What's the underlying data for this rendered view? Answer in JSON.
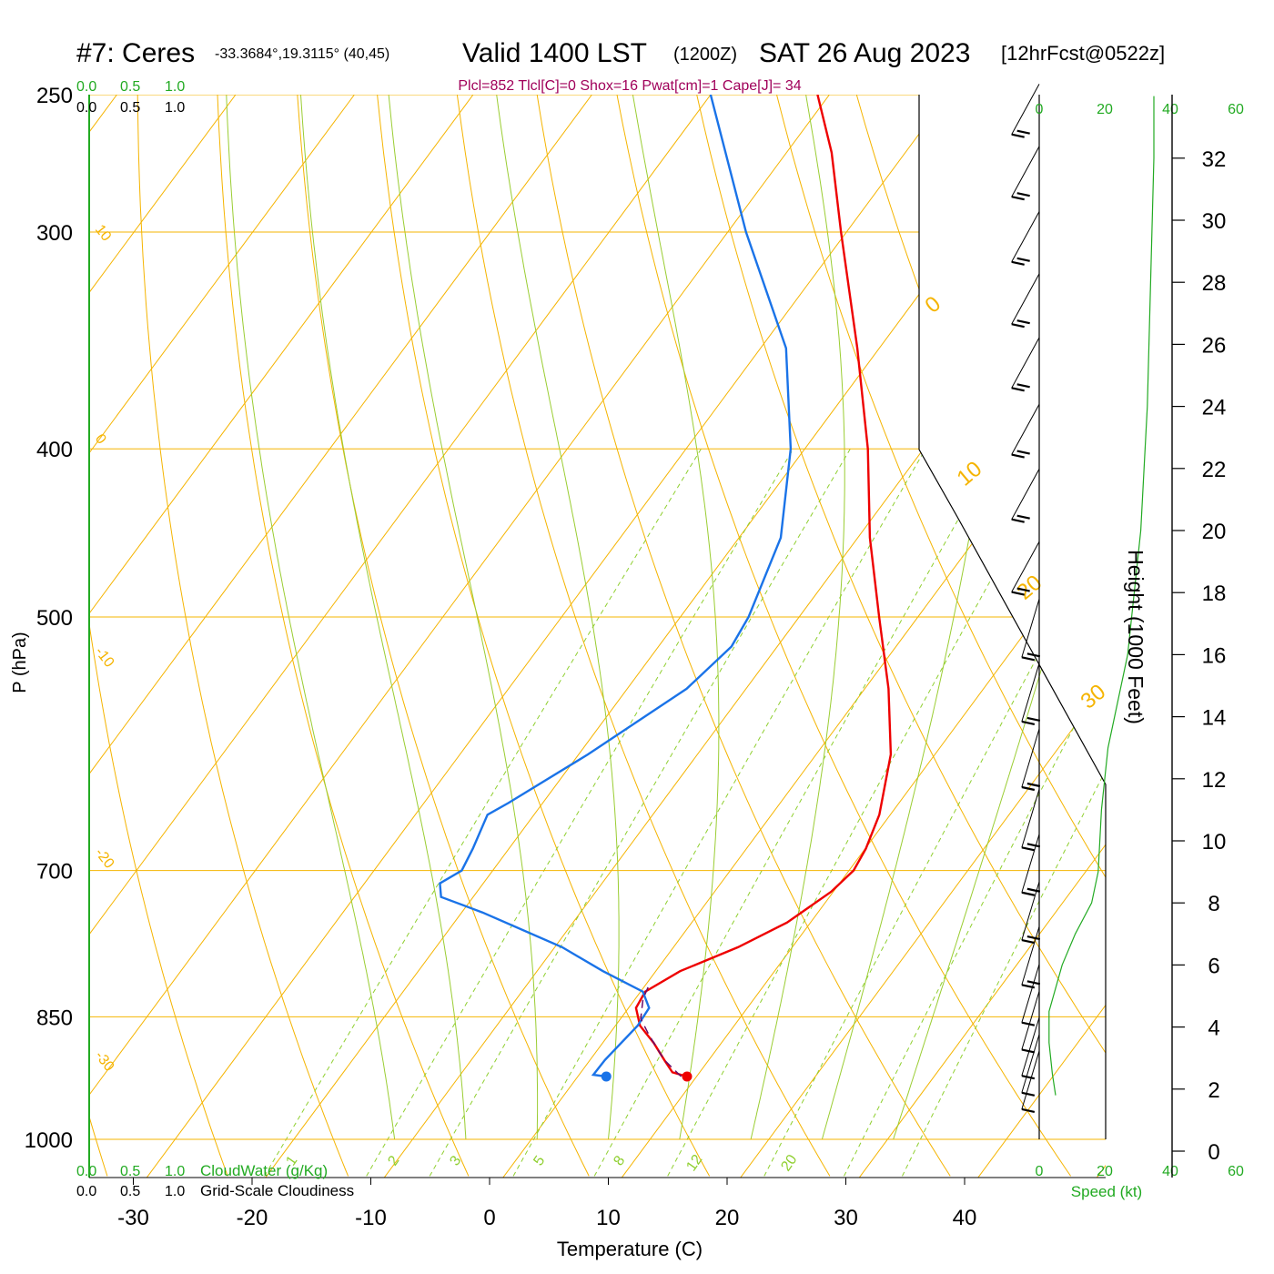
{
  "header": {
    "station": "#7: Ceres",
    "coords": "-33.3684°,19.3115° (40,45)",
    "valid": "Valid 1400 LST",
    "utc": "(1200Z)",
    "date": "SAT 26 Aug 2023",
    "forecast": "[12hrFcst@0522z]",
    "params": "Plcl=852 Tlcl[C]=0 Shox=16 Pwat[cm]=1 Cape[J]= 34"
  },
  "axes": {
    "pressure_label": "P (hPa)",
    "temperature_label": "Temperature (C)",
    "height_label": "Height (1000 Feet)",
    "speed_label": "Speed (kt)",
    "cloudwater_label": "CloudWater (g/Kg)",
    "cloudiness_label": "Grid-Scale Cloudiness",
    "pressure_ticks": [
      250,
      300,
      400,
      500,
      700,
      850,
      1000
    ],
    "temperature_ticks": [
      -30,
      -20,
      -10,
      0,
      10,
      20,
      30,
      40
    ],
    "height_ticks": [
      0,
      2,
      4,
      6,
      8,
      10,
      12,
      14,
      16,
      18,
      20,
      22,
      24,
      26,
      28,
      30,
      32
    ],
    "speed_ticks": [
      0,
      20,
      40,
      60
    ],
    "cloud_ticks": [
      "0.0",
      "0.5",
      "1.0"
    ],
    "ylim_hpa": [
      1000,
      250
    ],
    "xlim_c": [
      -34,
      36
    ]
  },
  "isotherm_labels": [
    "10",
    "0",
    "-10",
    "-20",
    "-30"
  ],
  "dry_adiabat_labels": [
    "0",
    "10",
    "20",
    "30"
  ],
  "mixing_ratio_labels": [
    "1",
    "2",
    "3",
    "5",
    "8",
    "12",
    "20"
  ],
  "colors": {
    "temperature": "#ee0000",
    "dewpoint": "#1a73e8",
    "isotherm": "#f5b400",
    "moist_adiabat": "#9acd32",
    "mixing_ratio": "#8fcf2f",
    "params": "#a0005a",
    "green_text": "#22aa22"
  },
  "chart_data": {
    "type": "line",
    "title": "#7: Ceres Valid 1400 LST (1200Z) SAT 26 Aug 2023",
    "xlabel": "Temperature (C)",
    "ylabel": "P (hPa)",
    "series": [
      {
        "kind": "temperature",
        "points": [
          {
            "p": 920,
            "t": 12.5
          },
          {
            "p": 915,
            "t": 11.0
          },
          {
            "p": 900,
            "t": 9.5
          },
          {
            "p": 880,
            "t": 7.5
          },
          {
            "p": 860,
            "t": 5.2
          },
          {
            "p": 840,
            "t": 3.7
          },
          {
            "p": 822,
            "t": 3.4
          },
          {
            "p": 800,
            "t": 5.0
          },
          {
            "p": 775,
            "t": 8.3
          },
          {
            "p": 750,
            "t": 10.8
          },
          {
            "p": 720,
            "t": 12.5
          },
          {
            "p": 700,
            "t": 13.0
          },
          {
            "p": 680,
            "t": 12.6
          },
          {
            "p": 650,
            "t": 11.5
          },
          {
            "p": 600,
            "t": 8.5
          },
          {
            "p": 550,
            "t": 4.0
          },
          {
            "p": 500,
            "t": -1.5
          },
          {
            "p": 450,
            "t": -7.5
          },
          {
            "p": 400,
            "t": -13.5
          },
          {
            "p": 350,
            "t": -21.0
          },
          {
            "p": 300,
            "t": -30.0
          },
          {
            "p": 270,
            "t": -36.0
          },
          {
            "p": 250,
            "t": -41.0
          }
        ]
      },
      {
        "kind": "dewpoint",
        "points": [
          {
            "p": 920,
            "t": 5.7
          },
          {
            "p": 918,
            "t": 4.5
          },
          {
            "p": 900,
            "t": 4.5
          },
          {
            "p": 860,
            "t": 5.0
          },
          {
            "p": 840,
            "t": 4.8
          },
          {
            "p": 822,
            "t": 3.2
          },
          {
            "p": 800,
            "t": -1.5
          },
          {
            "p": 775,
            "t": -6.5
          },
          {
            "p": 740,
            "t": -15.5
          },
          {
            "p": 725,
            "t": -20.0
          },
          {
            "p": 712,
            "t": -21.0
          },
          {
            "p": 700,
            "t": -20.0
          },
          {
            "p": 680,
            "t": -20.5
          },
          {
            "p": 650,
            "t": -21.5
          },
          {
            "p": 640,
            "t": -20.5
          },
          {
            "p": 600,
            "t": -17.0
          },
          {
            "p": 550,
            "t": -13.0
          },
          {
            "p": 520,
            "t": -12.0
          },
          {
            "p": 500,
            "t": -12.5
          },
          {
            "p": 450,
            "t": -15.0
          },
          {
            "p": 400,
            "t": -20.0
          },
          {
            "p": 350,
            "t": -27.0
          },
          {
            "p": 300,
            "t": -38.0
          },
          {
            "p": 250,
            "t": -50.0
          }
        ]
      },
      {
        "kind": "parcel",
        "points": [
          {
            "p": 920,
            "t": 12.0
          },
          {
            "p": 900,
            "t": 9.5
          },
          {
            "p": 870,
            "t": 6.5
          },
          {
            "p": 852,
            "t": 4.8
          },
          {
            "p": 830,
            "t": 3.7
          },
          {
            "p": 815,
            "t": 3.3
          }
        ]
      }
    ],
    "surface": {
      "p": 920,
      "temperature": 12.5,
      "dewpoint": 5.7
    },
    "wind_speed_kt": [
      {
        "height_kft": 1.8,
        "speed": 5
      },
      {
        "height_kft": 2.5,
        "speed": 4
      },
      {
        "height_kft": 3.5,
        "speed": 3
      },
      {
        "height_kft": 4.5,
        "speed": 3
      },
      {
        "height_kft": 6.0,
        "speed": 7
      },
      {
        "height_kft": 7.0,
        "speed": 11
      },
      {
        "height_kft": 8.0,
        "speed": 16
      },
      {
        "height_kft": 9.0,
        "speed": 18
      },
      {
        "height_kft": 11.0,
        "speed": 19
      },
      {
        "height_kft": 13.0,
        "speed": 21
      },
      {
        "height_kft": 16.0,
        "speed": 27
      },
      {
        "height_kft": 20.0,
        "speed": 31
      },
      {
        "height_kft": 24.0,
        "speed": 33
      },
      {
        "height_kft": 28.0,
        "speed": 34
      },
      {
        "height_kft": 32.0,
        "speed": 35
      },
      {
        "height_kft": 34.0,
        "speed": 35
      }
    ],
    "wind_barbs_kt": [
      {
        "p": 255,
        "speed": 15
      },
      {
        "p": 277,
        "speed": 15
      },
      {
        "p": 302,
        "speed": 15
      },
      {
        "p": 328,
        "speed": 15
      },
      {
        "p": 357,
        "speed": 15
      },
      {
        "p": 390,
        "speed": 15
      },
      {
        "p": 425,
        "speed": 15
      },
      {
        "p": 468,
        "speed": 15
      },
      {
        "p": 505,
        "speed": 20
      },
      {
        "p": 550,
        "speed": 20
      },
      {
        "p": 600,
        "speed": 20
      },
      {
        "p": 650,
        "speed": 20
      },
      {
        "p": 690,
        "speed": 20
      },
      {
        "p": 735,
        "speed": 15
      },
      {
        "p": 780,
        "speed": 15
      },
      {
        "p": 820,
        "speed": 10
      },
      {
        "p": 850,
        "speed": 10
      },
      {
        "p": 880,
        "speed": 10
      },
      {
        "p": 900,
        "speed": 10
      },
      {
        "p": 920,
        "speed": 10
      }
    ]
  }
}
